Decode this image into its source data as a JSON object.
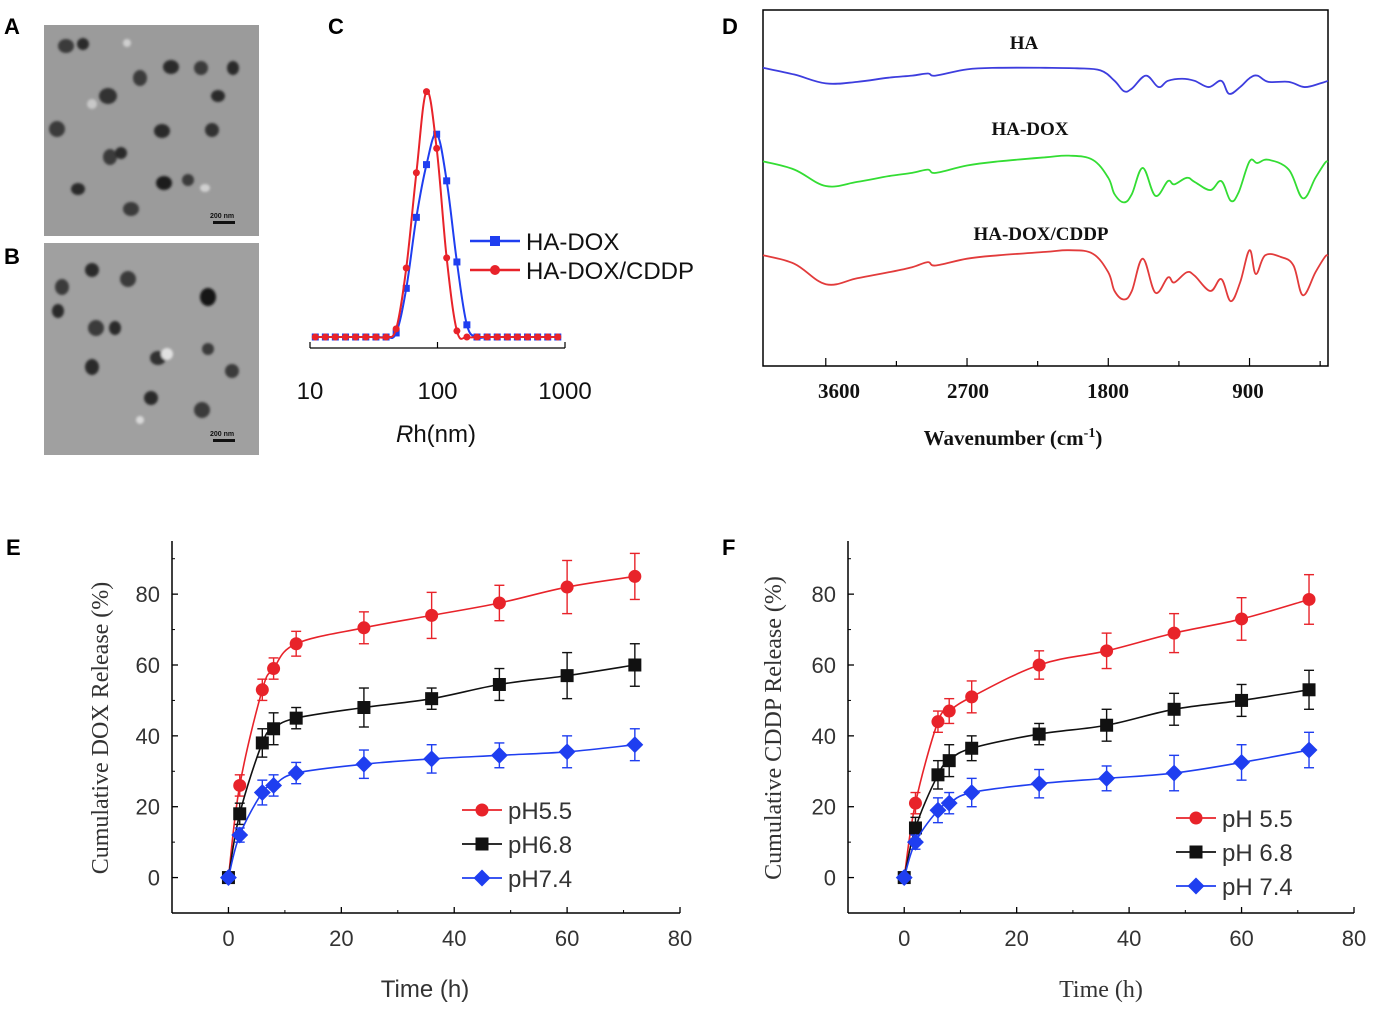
{
  "panel_letters": {
    "a": "A",
    "b": "B",
    "c": "C",
    "d": "D",
    "e": "E",
    "f": "F"
  },
  "tem": {
    "scale_bar_a": "200 nm",
    "scale_bar_b": "200 nm"
  },
  "colors": {
    "red": "#e8232a",
    "black": "#111111",
    "blue": "#1f3ef0",
    "green": "#33dd33",
    "ir_blue": "#3d3dde",
    "ir_red": "#e23b3b",
    "tem_bg": "#9a9a9a"
  },
  "chart_data": [
    {
      "id": "C",
      "type": "line",
      "xscale": "log",
      "xlabel_italic": "R",
      "xlabel_rest": "h(nm)",
      "xticks": [
        "10",
        "100",
        "1000"
      ],
      "xlim": [
        10,
        1000
      ],
      "ylim": [
        0,
        1
      ],
      "legend": [
        "HA-DOX",
        "HA-DOX/CDDP"
      ],
      "series": [
        {
          "name": "HA-DOX",
          "color": "#1f3ef0",
          "marker": "square",
          "points": [
            [
              11,
              0
            ],
            [
              13.2,
              0
            ],
            [
              15.8,
              0
            ],
            [
              19,
              0
            ],
            [
              22.8,
              0
            ],
            [
              27.4,
              0
            ],
            [
              32.9,
              0
            ],
            [
              39.5,
              0
            ],
            [
              47.4,
              0.02
            ],
            [
              56.9,
              0.24
            ],
            [
              68.3,
              0.59
            ],
            [
              82,
              0.85
            ],
            [
              98.5,
              1
            ],
            [
              118,
              0.77
            ],
            [
              142,
              0.37
            ],
            [
              170,
              0.06
            ],
            [
              204,
              0
            ],
            [
              245,
              0
            ],
            [
              294,
              0
            ],
            [
              353,
              0
            ],
            [
              423,
              0
            ],
            [
              508,
              0
            ],
            [
              610,
              0
            ],
            [
              732,
              0
            ],
            [
              878,
              0
            ]
          ]
        },
        {
          "name": "HA-DOX/CDDP",
          "color": "#e8232a",
          "marker": "circle",
          "points": [
            [
              11,
              0
            ],
            [
              13.2,
              0
            ],
            [
              15.8,
              0
            ],
            [
              19,
              0
            ],
            [
              22.8,
              0
            ],
            [
              27.4,
              0
            ],
            [
              32.9,
              0
            ],
            [
              39.5,
              0
            ],
            [
              47.4,
              0.04
            ],
            [
              56.9,
              0.34
            ],
            [
              68.3,
              0.81
            ],
            [
              82,
              1.21
            ],
            [
              98.5,
              0.93
            ],
            [
              118,
              0.39
            ],
            [
              142,
              0.03
            ],
            [
              170,
              0
            ],
            [
              204,
              0
            ],
            [
              245,
              0
            ],
            [
              294,
              0
            ],
            [
              353,
              0
            ],
            [
              423,
              0
            ],
            [
              508,
              0
            ],
            [
              610,
              0
            ],
            [
              732,
              0
            ],
            [
              878,
              0
            ]
          ]
        }
      ]
    },
    {
      "id": "D",
      "type": "line",
      "xlabel": "Wavenumber (cm",
      "xlabel_sup": "-1",
      "xlabel_end": ")",
      "xticks": [
        "3600",
        "2700",
        "1800",
        "900"
      ],
      "xlim": [
        4000,
        400
      ],
      "series": [
        {
          "name": "HA",
          "color": "#3d3dde",
          "points": [
            [
              4000,
              0.85
            ],
            [
              3800,
              0.72
            ],
            [
              3600,
              0.55
            ],
            [
              3400,
              0.58
            ],
            [
              3200,
              0.66
            ],
            [
              3050,
              0.7
            ],
            [
              2950,
              0.74
            ],
            [
              2900,
              0.7
            ],
            [
              2700,
              0.82
            ],
            [
              2500,
              0.85
            ],
            [
              2200,
              0.85
            ],
            [
              2000,
              0.84
            ],
            [
              1850,
              0.8
            ],
            [
              1760,
              0.6
            ],
            [
              1700,
              0.4
            ],
            [
              1650,
              0.45
            ],
            [
              1560,
              0.7
            ],
            [
              1480,
              0.48
            ],
            [
              1420,
              0.6
            ],
            [
              1330,
              0.64
            ],
            [
              1250,
              0.6
            ],
            [
              1160,
              0.48
            ],
            [
              1080,
              0.6
            ],
            [
              1030,
              0.35
            ],
            [
              960,
              0.48
            ],
            [
              900,
              0.65
            ],
            [
              850,
              0.7
            ],
            [
              780,
              0.58
            ],
            [
              650,
              0.58
            ],
            [
              550,
              0.48
            ],
            [
              450,
              0.55
            ],
            [
              400,
              0.6
            ]
          ]
        },
        {
          "name": "HA-DOX",
          "color": "#33dd33",
          "points": [
            [
              4000,
              0.8
            ],
            [
              3800,
              0.7
            ],
            [
              3600,
              0.5
            ],
            [
              3400,
              0.55
            ],
            [
              3200,
              0.62
            ],
            [
              3050,
              0.66
            ],
            [
              2950,
              0.7
            ],
            [
              2900,
              0.66
            ],
            [
              2700,
              0.75
            ],
            [
              2500,
              0.8
            ],
            [
              2200,
              0.85
            ],
            [
              2050,
              0.87
            ],
            [
              1900,
              0.82
            ],
            [
              1800,
              0.6
            ],
            [
              1760,
              0.4
            ],
            [
              1700,
              0.3
            ],
            [
              1650,
              0.4
            ],
            [
              1580,
              0.72
            ],
            [
              1500,
              0.38
            ],
            [
              1420,
              0.56
            ],
            [
              1380,
              0.52
            ],
            [
              1300,
              0.6
            ],
            [
              1250,
              0.55
            ],
            [
              1150,
              0.45
            ],
            [
              1080,
              0.56
            ],
            [
              1020,
              0.32
            ],
            [
              970,
              0.42
            ],
            [
              900,
              0.8
            ],
            [
              850,
              0.78
            ],
            [
              780,
              0.82
            ],
            [
              650,
              0.7
            ],
            [
              560,
              0.35
            ],
            [
              480,
              0.6
            ],
            [
              420,
              0.78
            ],
            [
              400,
              0.8
            ]
          ]
        },
        {
          "name": "HA-DOX/CDDP",
          "color": "#e23b3b",
          "points": [
            [
              4000,
              0.82
            ],
            [
              3800,
              0.72
            ],
            [
              3600,
              0.48
            ],
            [
              3400,
              0.55
            ],
            [
              3200,
              0.62
            ],
            [
              3050,
              0.68
            ],
            [
              2950,
              0.74
            ],
            [
              2900,
              0.7
            ],
            [
              2700,
              0.78
            ],
            [
              2500,
              0.82
            ],
            [
              2200,
              0.86
            ],
            [
              2050,
              0.88
            ],
            [
              1900,
              0.84
            ],
            [
              1800,
              0.62
            ],
            [
              1760,
              0.4
            ],
            [
              1700,
              0.3
            ],
            [
              1650,
              0.4
            ],
            [
              1580,
              0.78
            ],
            [
              1500,
              0.38
            ],
            [
              1420,
              0.56
            ],
            [
              1380,
              0.5
            ],
            [
              1300,
              0.62
            ],
            [
              1250,
              0.58
            ],
            [
              1150,
              0.4
            ],
            [
              1080,
              0.54
            ],
            [
              1020,
              0.28
            ],
            [
              960,
              0.5
            ],
            [
              900,
              0.88
            ],
            [
              860,
              0.6
            ],
            [
              800,
              0.82
            ],
            [
              700,
              0.8
            ],
            [
              620,
              0.7
            ],
            [
              560,
              0.35
            ],
            [
              480,
              0.62
            ],
            [
              420,
              0.8
            ],
            [
              400,
              0.82
            ]
          ]
        }
      ]
    },
    {
      "id": "E",
      "type": "line",
      "xlabel": "Time (h)",
      "ylabel": "Cumulative DOX Release (%)",
      "xlim": [
        -10,
        80
      ],
      "ylim": [
        -10,
        95
      ],
      "xticks": [
        0,
        20,
        40,
        60,
        80
      ],
      "yticks": [
        0,
        20,
        40,
        60,
        80
      ],
      "x": [
        0,
        2,
        6,
        8,
        12,
        24,
        36,
        48,
        60,
        72
      ],
      "series": [
        {
          "name": "pH5.5",
          "color": "#e8232a",
          "marker": "circle",
          "values": [
            0,
            26,
            53,
            59,
            66,
            70.5,
            74,
            77.5,
            82,
            85
          ],
          "errors": [
            0,
            3,
            3,
            3,
            3.5,
            4.5,
            6.5,
            5,
            7.5,
            6.5
          ]
        },
        {
          "name": "pH6.8",
          "color": "#111111",
          "marker": "square",
          "values": [
            0,
            18,
            38,
            42,
            45,
            48,
            50.5,
            54.5,
            57,
            60
          ],
          "errors": [
            0,
            3,
            4,
            4.5,
            3,
            5.5,
            3,
            4.5,
            6.5,
            6
          ]
        },
        {
          "name": "pH7.4",
          "color": "#1f3ef0",
          "marker": "diamond",
          "values": [
            0,
            12,
            24,
            26,
            29.5,
            32,
            33.5,
            34.5,
            35.5,
            37.5
          ],
          "errors": [
            0,
            2,
            3.5,
            3,
            3,
            4,
            4,
            3.5,
            4.5,
            4.5
          ]
        }
      ]
    },
    {
      "id": "F",
      "type": "line",
      "xlabel": "Time (h)",
      "ylabel": "Cumulative CDDP Release (%)",
      "xlim": [
        -10,
        80
      ],
      "ylim": [
        -10,
        95
      ],
      "xticks": [
        0,
        20,
        40,
        60,
        80
      ],
      "yticks": [
        0,
        20,
        40,
        60,
        80
      ],
      "x": [
        0,
        2,
        6,
        8,
        12,
        24,
        36,
        48,
        60,
        72
      ],
      "series": [
        {
          "name": "pH 5.5",
          "color": "#e8232a",
          "marker": "circle",
          "values": [
            0,
            21,
            44,
            47,
            51,
            60,
            64,
            69,
            73,
            78.5
          ],
          "errors": [
            0,
            3,
            3,
            3.5,
            4.5,
            4,
            5,
            5.5,
            6,
            7
          ]
        },
        {
          "name": "pH 6.8",
          "color": "#111111",
          "marker": "square",
          "values": [
            0,
            14,
            29,
            33,
            36.5,
            40.5,
            43,
            47.5,
            50,
            53
          ],
          "errors": [
            0,
            3,
            4,
            4.5,
            3.5,
            3,
            4.5,
            4.5,
            4.5,
            5.5
          ]
        },
        {
          "name": "pH 7.4",
          "color": "#1f3ef0",
          "marker": "diamond",
          "values": [
            0,
            10,
            19,
            21,
            24,
            26.5,
            28,
            29.5,
            32.5,
            36
          ],
          "errors": [
            0,
            2,
            3.5,
            3,
            4,
            4,
            3.5,
            5,
            5,
            5
          ]
        }
      ]
    }
  ]
}
